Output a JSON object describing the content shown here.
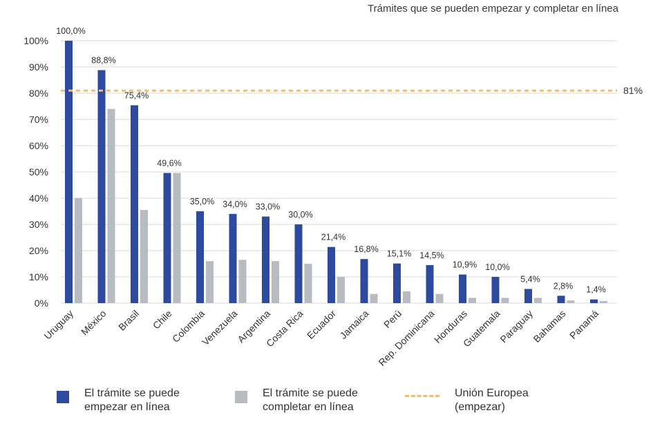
{
  "chart_data": {
    "type": "bar",
    "title": "Trámites que se pueden empezar y completar en línea",
    "categories": [
      "Uruguay",
      "México",
      "Brasil",
      "Chile",
      "Colombia",
      "Venezuela",
      "Argentina",
      "Costa Rica",
      "Ecuador",
      "Jamaica",
      "Perú",
      "Rep. Dominicana",
      "Honduras",
      "Guatemala",
      "Paraguay",
      "Bahamas",
      "Panamá"
    ],
    "series": [
      {
        "name": "El trámite se puede empezar en línea",
        "color": "#2E4A9E",
        "values": [
          100.0,
          88.8,
          75.4,
          49.6,
          35.0,
          34.0,
          33.0,
          30.0,
          21.4,
          16.8,
          15.1,
          14.5,
          10.9,
          10.0,
          5.4,
          2.8,
          1.4
        ]
      },
      {
        "name": "El trámite se puede completar en línea",
        "color": "#B7BBC2",
        "values": [
          40,
          74,
          35.5,
          49.6,
          16,
          16.5,
          16,
          15,
          10,
          3.5,
          4.5,
          3.5,
          2,
          2,
          2,
          1,
          0.8
        ]
      }
    ],
    "data_labels": [
      "100,0%",
      "88,8%",
      "75,4%",
      "49,6%",
      "35,0%",
      "34,0%",
      "33,0%",
      "30,0%",
      "21,4%",
      "16,8%",
      "15,1%",
      "14,5%",
      "10,9%",
      "10,0%",
      "5,4%",
      "2,8%",
      "1,4%"
    ],
    "reference_line": {
      "name": "Unión Europea (empezar)",
      "value": 81,
      "label": "81%",
      "color": "#E9BF7D"
    },
    "ylim": [
      0,
      100
    ],
    "yticks": [
      0,
      10,
      20,
      30,
      40,
      50,
      60,
      70,
      80,
      90,
      100
    ],
    "ytick_labels": [
      "0%",
      "10%",
      "20%",
      "30%",
      "40%",
      "50%",
      "60%",
      "70%",
      "80%",
      "90%",
      "100%"
    ],
    "grid": "horizontal",
    "legend_position": "bottom"
  },
  "legend": {
    "start_line1": "El trámite se puede",
    "start_line2": "empezar en línea",
    "complete_line1": "El trámite se puede",
    "complete_line2": "completar en línea",
    "eu_line1": "Unión Europea",
    "eu_line2": "(empezar)"
  }
}
